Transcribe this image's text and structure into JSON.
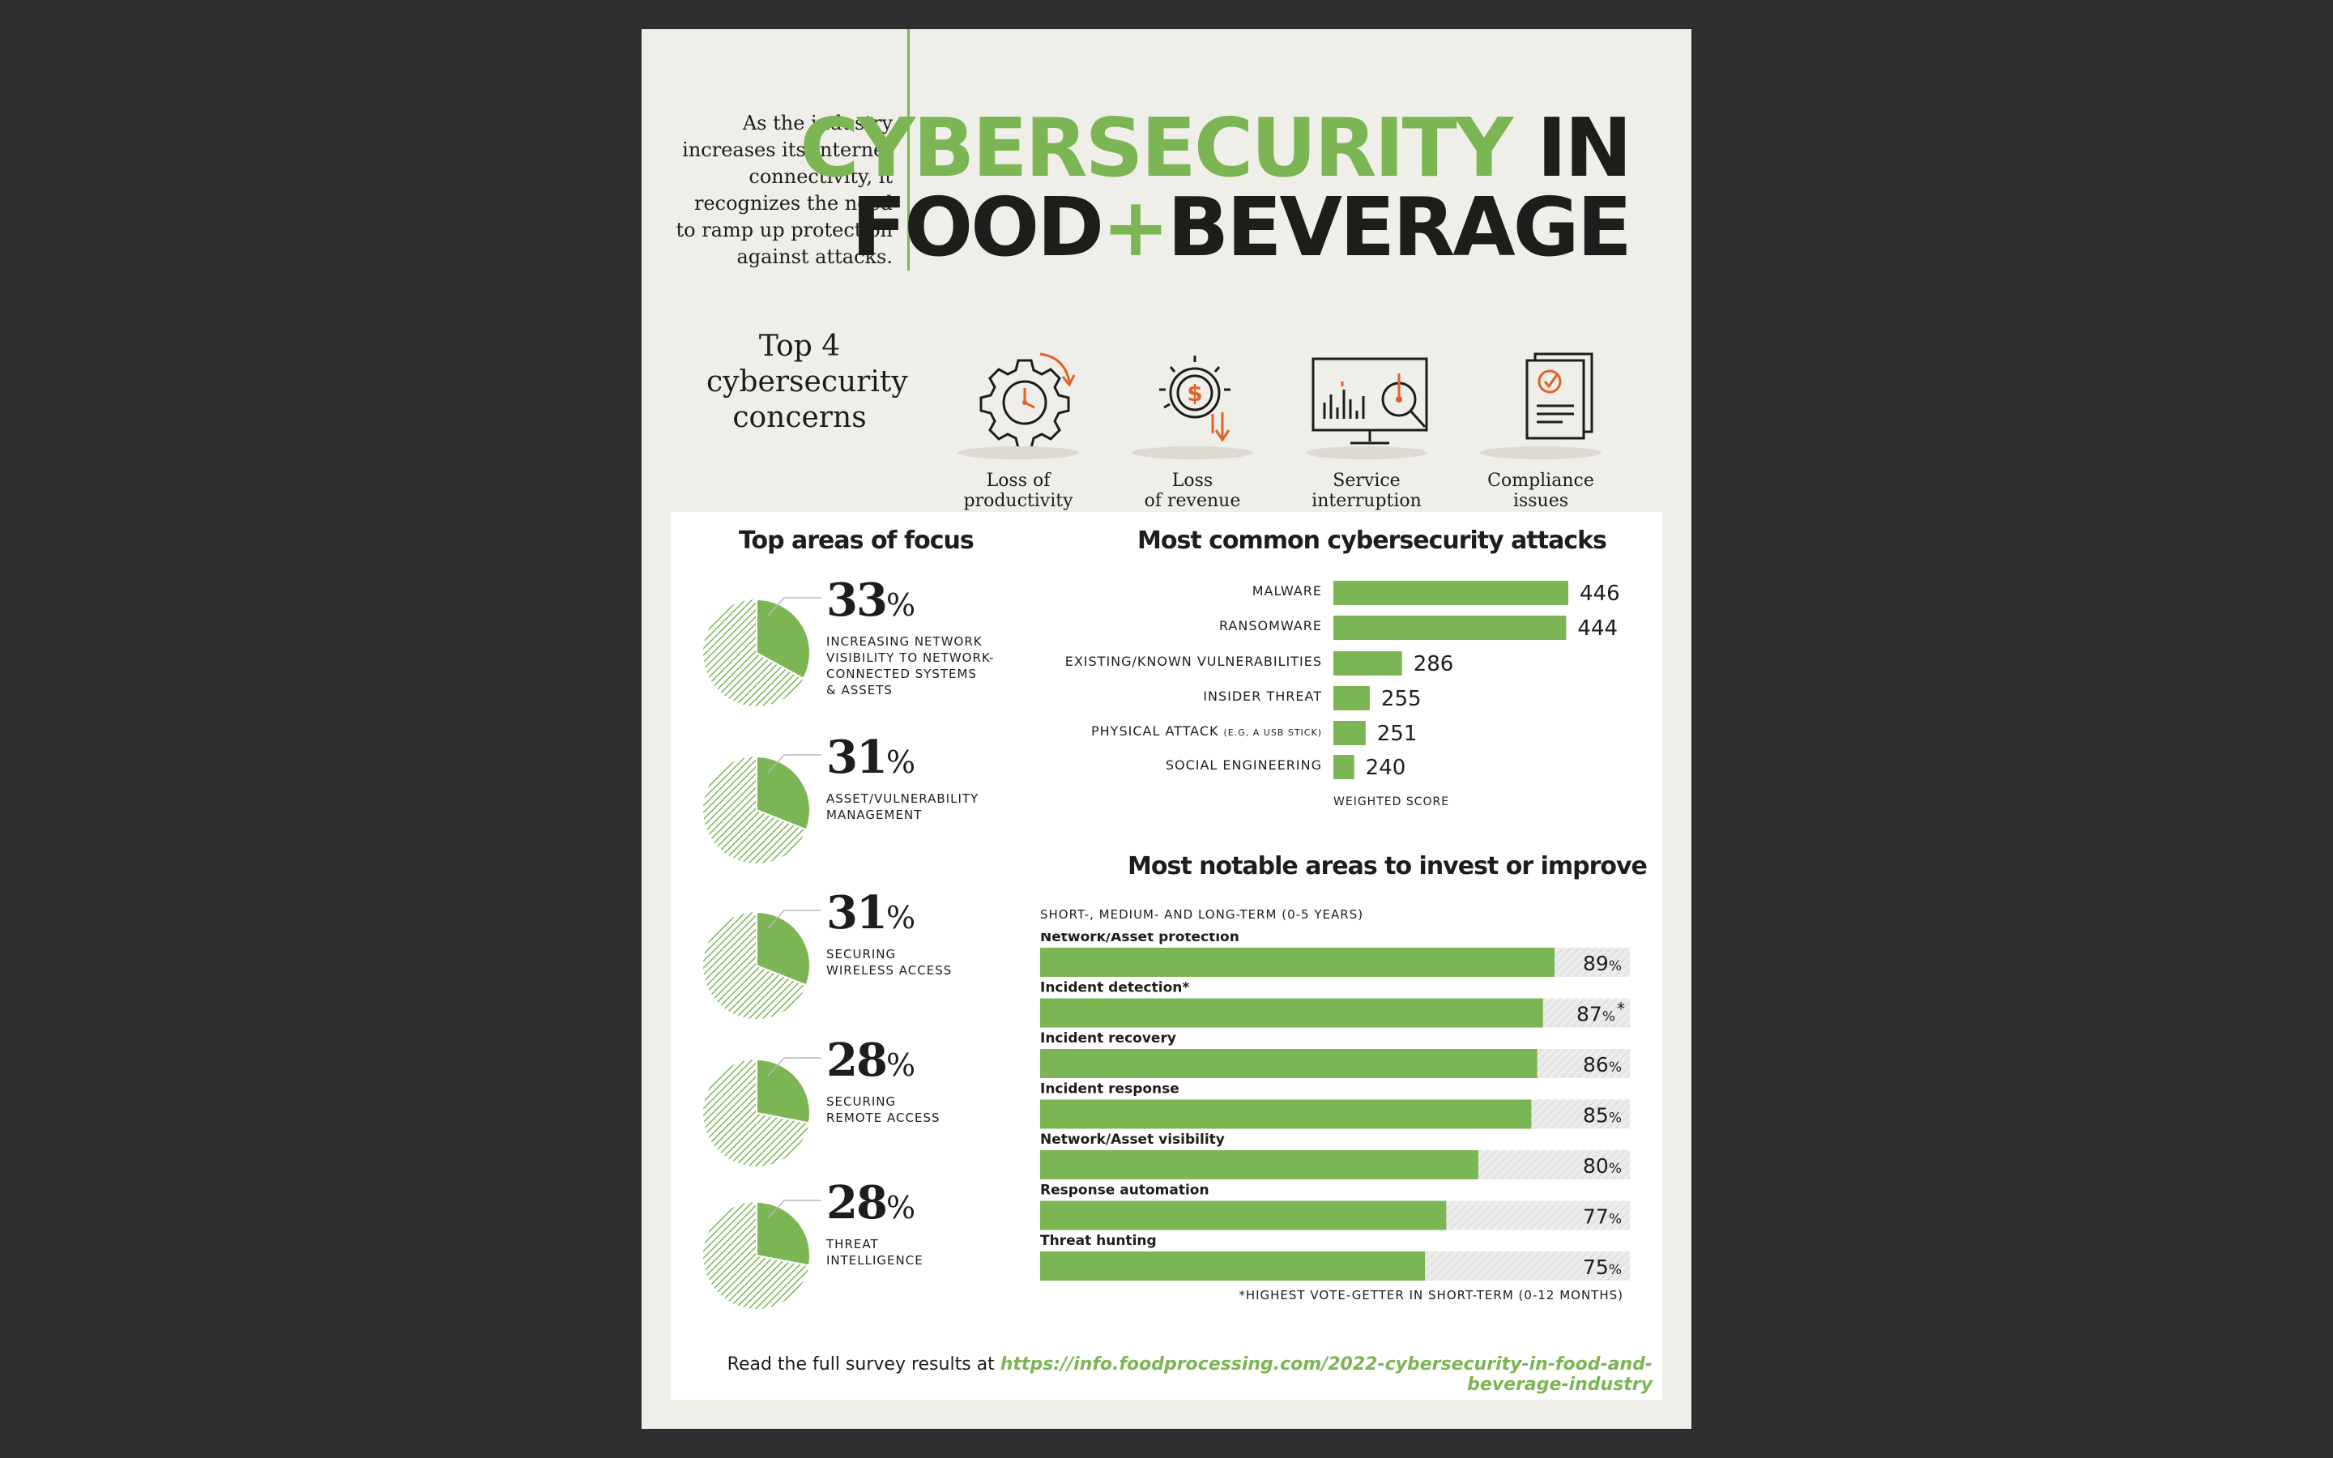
{
  "header": {
    "intro": "As the industry increases its Internet connectivity, it recognizes the need to ramp up protection against attacks.",
    "title_green": "CYBERSECURITY",
    "title_in": " IN",
    "title_food": "FOOD",
    "title_plus": "+",
    "title_beverage": "BEVERAGE"
  },
  "concerns": {
    "heading": "Top 4 cybersecurity concerns",
    "items": [
      {
        "label": "Loss of\nproductivity",
        "icon": "gear-clock-icon"
      },
      {
        "label": "Loss\nof revenue",
        "icon": "dollar-decline-icon"
      },
      {
        "label": "Service\ninterruption",
        "icon": "monitor-magnifier-icon"
      },
      {
        "label": "Compliance\nissues",
        "icon": "checklist-document-icon"
      }
    ]
  },
  "focus": {
    "title": "Top areas of focus",
    "items": [
      {
        "pct": "33",
        "desc": "INCREASING NETWORK\nVISIBILITY TO NETWORK-\nCONNECTED SYSTEMS\n& ASSETS"
      },
      {
        "pct": "31",
        "desc": "ASSET/VULNERABILITY\nMANAGEMENT"
      },
      {
        "pct": "31",
        "desc": "SECURING\nWIRELESS ACCESS"
      },
      {
        "pct": "28",
        "desc": "SECURING\nREMOTE ACCESS"
      },
      {
        "pct": "28",
        "desc": "THREAT\nINTELLIGENCE"
      }
    ],
    "percent_symbol": "%"
  },
  "chart_data": [
    {
      "type": "bar",
      "title": "Most common cybersecurity attacks",
      "orientation": "horizontal",
      "categories": [
        "MALWARE",
        "RANSOMWARE",
        "EXISTING/KNOWN VULNERABILITIES",
        "INSIDER THREAT",
        "PHYSICAL ATTACK",
        "SOCIAL ENGINEERING"
      ],
      "category_notes": [
        "",
        "",
        "",
        "",
        "(E.G, A USB STICK)",
        ""
      ],
      "values": [
        446,
        444,
        286,
        255,
        251,
        240
      ],
      "xlabel": "WEIGHTED SCORE",
      "color": "#7cb654"
    },
    {
      "type": "bar",
      "title": "Most notable areas to invest or improve",
      "subtitle": "SHORT-, MEDIUM- AND LONG-TERM (0-5 YEARS)",
      "orientation": "horizontal",
      "categories": [
        "Network/Asset protection",
        "Incident detection*",
        "Incident recovery",
        "Incident response",
        "Network/Asset visibility",
        "Response automation",
        "Threat hunting"
      ],
      "values": [
        89,
        87,
        86,
        85,
        80,
        77,
        75
      ],
      "value_suffix": "%",
      "value_marks": [
        "",
        "*",
        "",
        "",
        "",
        "",
        ""
      ],
      "xlim": [
        0,
        100
      ],
      "footnote": "*HIGHEST VOTE-GETTER IN SHORT-TERM (0-12 MONTHS)",
      "color": "#7cb654"
    }
  ],
  "footer": {
    "text": "Read the full survey results at ",
    "link": "https://info.foodprocessing.com/2022-cybersecurity-in-food-and-beverage-industry"
  },
  "colors": {
    "accent": "#7cb654",
    "orange": "#e0622a",
    "dark": "#1d1d1b"
  }
}
